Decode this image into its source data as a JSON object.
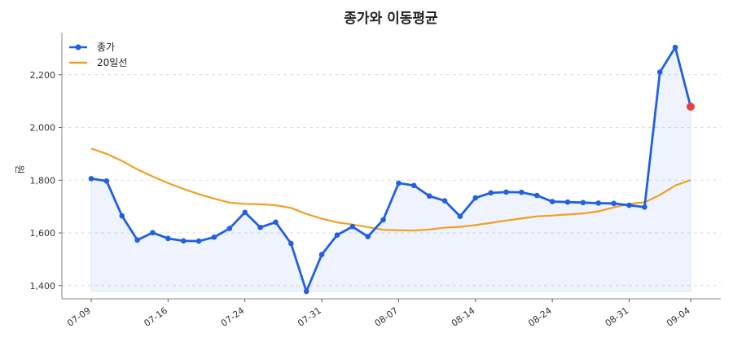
{
  "chart_data": {
    "type": "line",
    "title": "종가와 이동평균",
    "xlabel": "",
    "ylabel": "원",
    "ylim": [
      1350,
      2360
    ],
    "yticks": [
      1400,
      1600,
      1800,
      2000,
      2200
    ],
    "ytick_labels": [
      "1,400",
      "1,600",
      "1,800",
      "2,000",
      "2,200"
    ],
    "xtick_labels": [
      "07-09",
      "07-16",
      "07-24",
      "07-31",
      "08-07",
      "08-14",
      "08-24",
      "08-31",
      "09-04"
    ],
    "xtick_positions": [
      0,
      5,
      10,
      15,
      20,
      25,
      30,
      35,
      39
    ],
    "grid": true,
    "legend": "top-left",
    "series": [
      {
        "name": "종가",
        "color": "#2160e0",
        "values": [
          1806,
          1797,
          1665,
          1573,
          1601,
          1579,
          1570,
          1569,
          1584,
          1617,
          1678,
          1621,
          1641,
          1560,
          1378,
          1518,
          1592,
          1624,
          1586,
          1650,
          1789,
          1780,
          1740,
          1722,
          1663,
          1733,
          1752,
          1755,
          1754,
          1742,
          1719,
          1717,
          1715,
          1713,
          1712,
          1705,
          1698,
          2210,
          2304,
          2079
        ]
      },
      {
        "name": "20일선",
        "color": "#f0a020",
        "values": [
          1920,
          1900,
          1873,
          1841,
          1814,
          1789,
          1767,
          1747,
          1730,
          1715,
          1710,
          1709,
          1705,
          1695,
          1672,
          1654,
          1640,
          1632,
          1622,
          1612,
          1610,
          1609,
          1613,
          1620,
          1623,
          1630,
          1638,
          1647,
          1655,
          1663,
          1666,
          1670,
          1674,
          1682,
          1697,
          1710,
          1716,
          1744,
          1780,
          1801
        ]
      }
    ],
    "last_point_color": "#e84040"
  }
}
